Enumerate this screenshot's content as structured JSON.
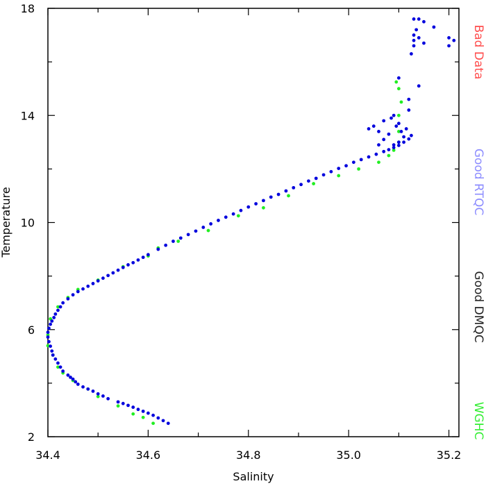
{
  "colors": {
    "bad_data": "#ff4d4d",
    "good_rtqc": "#8c8cff",
    "good_dmqc": "#222222",
    "wghc": "#33ee33",
    "argo_points": "#0000dd",
    "wghc_points": "#22ee22"
  },
  "legend": [
    {
      "label": "Bad Data",
      "color": "#ff4d4d"
    },
    {
      "label": "Good RTQC",
      "color": "#8c8cff"
    },
    {
      "label": "Good DMQC",
      "color": "#222222"
    },
    {
      "label": "WGHC",
      "color": "#33ee33"
    }
  ],
  "chart_data": {
    "type": "scatter",
    "title": "",
    "xlabel": "Salinity",
    "ylabel": "Temperature",
    "xlim": [
      34.4,
      35.22
    ],
    "ylim": [
      2,
      18
    ],
    "x_ticks": [
      34.4,
      34.6,
      34.8,
      35.0,
      35.2
    ],
    "x_tick_labels": [
      "34.4",
      "34.6",
      "34.8",
      "35.0",
      "35.2"
    ],
    "y_ticks": [
      2,
      6,
      10,
      14,
      18
    ],
    "y_tick_labels": [
      "2",
      "6",
      "10",
      "14",
      "18"
    ],
    "grid": false,
    "legend_position": "right",
    "series": [
      {
        "name": "Good DMQC",
        "color": "#0000dd",
        "points": [
          [
            34.64,
            2.5
          ],
          [
            34.63,
            2.6
          ],
          [
            34.62,
            2.7
          ],
          [
            34.61,
            2.8
          ],
          [
            34.6,
            2.88
          ],
          [
            34.59,
            2.95
          ],
          [
            34.58,
            3.02
          ],
          [
            34.57,
            3.1
          ],
          [
            34.56,
            3.17
          ],
          [
            34.55,
            3.24
          ],
          [
            34.54,
            3.3
          ],
          [
            34.52,
            3.42
          ],
          [
            34.51,
            3.52
          ],
          [
            34.5,
            3.6
          ],
          [
            34.49,
            3.7
          ],
          [
            34.48,
            3.78
          ],
          [
            34.47,
            3.86
          ],
          [
            34.46,
            3.96
          ],
          [
            34.455,
            4.05
          ],
          [
            34.45,
            4.15
          ],
          [
            34.445,
            4.22
          ],
          [
            34.44,
            4.3
          ],
          [
            34.43,
            4.45
          ],
          [
            34.425,
            4.6
          ],
          [
            34.42,
            4.75
          ],
          [
            34.415,
            4.9
          ],
          [
            34.41,
            5.05
          ],
          [
            34.408,
            5.2
          ],
          [
            34.405,
            5.38
          ],
          [
            34.402,
            5.55
          ],
          [
            34.4,
            5.72
          ],
          [
            34.4,
            5.9
          ],
          [
            34.402,
            6.05
          ],
          [
            34.405,
            6.2
          ],
          [
            34.408,
            6.32
          ],
          [
            34.412,
            6.45
          ],
          [
            34.415,
            6.58
          ],
          [
            34.42,
            6.72
          ],
          [
            34.425,
            6.85
          ],
          [
            34.43,
            7.0
          ],
          [
            34.44,
            7.15
          ],
          [
            34.45,
            7.3
          ],
          [
            34.46,
            7.42
          ],
          [
            34.47,
            7.52
          ],
          [
            34.48,
            7.62
          ],
          [
            34.49,
            7.72
          ],
          [
            34.5,
            7.82
          ],
          [
            34.51,
            7.92
          ],
          [
            34.52,
            8.02
          ],
          [
            34.53,
            8.12
          ],
          [
            34.54,
            8.22
          ],
          [
            34.55,
            8.32
          ],
          [
            34.56,
            8.42
          ],
          [
            34.57,
            8.5
          ],
          [
            34.58,
            8.6
          ],
          [
            34.59,
            8.7
          ],
          [
            34.6,
            8.8
          ],
          [
            34.62,
            9.0
          ],
          [
            34.635,
            9.15
          ],
          [
            34.65,
            9.3
          ],
          [
            34.665,
            9.42
          ],
          [
            34.68,
            9.55
          ],
          [
            34.695,
            9.68
          ],
          [
            34.71,
            9.82
          ],
          [
            34.725,
            9.95
          ],
          [
            34.74,
            10.08
          ],
          [
            34.755,
            10.2
          ],
          [
            34.77,
            10.32
          ],
          [
            34.785,
            10.45
          ],
          [
            34.8,
            10.58
          ],
          [
            34.815,
            10.7
          ],
          [
            34.83,
            10.82
          ],
          [
            34.845,
            10.95
          ],
          [
            34.86,
            11.05
          ],
          [
            34.875,
            11.18
          ],
          [
            34.89,
            11.3
          ],
          [
            34.905,
            11.42
          ],
          [
            34.92,
            11.55
          ],
          [
            34.935,
            11.65
          ],
          [
            34.95,
            11.78
          ],
          [
            34.965,
            11.9
          ],
          [
            34.98,
            12.02
          ],
          [
            34.995,
            12.12
          ],
          [
            35.01,
            12.25
          ],
          [
            35.025,
            12.35
          ],
          [
            35.04,
            12.45
          ],
          [
            35.055,
            12.55
          ],
          [
            35.07,
            12.65
          ],
          [
            35.08,
            12.72
          ],
          [
            35.09,
            12.8
          ],
          [
            35.1,
            12.88
          ],
          [
            35.11,
            13.0
          ],
          [
            35.12,
            13.12
          ],
          [
            35.125,
            13.25
          ],
          [
            35.04,
            13.5
          ],
          [
            35.05,
            13.6
          ],
          [
            35.06,
            13.4
          ],
          [
            35.07,
            13.8
          ],
          [
            35.08,
            13.3
          ],
          [
            35.085,
            13.9
          ],
          [
            35.09,
            14.0
          ],
          [
            35.095,
            13.6
          ],
          [
            35.1,
            13.7
          ],
          [
            35.105,
            13.4
          ],
          [
            35.11,
            13.2
          ],
          [
            35.06,
            12.9
          ],
          [
            35.07,
            13.1
          ],
          [
            35.09,
            12.9
          ],
          [
            35.1,
            13.0
          ],
          [
            35.115,
            13.5
          ],
          [
            35.12,
            14.2
          ],
          [
            35.12,
            14.6
          ],
          [
            35.1,
            15.4
          ],
          [
            35.14,
            15.1
          ],
          [
            35.13,
            17.6
          ],
          [
            35.14,
            17.6
          ],
          [
            35.15,
            17.5
          ],
          [
            35.13,
            17.0
          ],
          [
            35.14,
            16.9
          ],
          [
            35.15,
            16.7
          ],
          [
            35.13,
            16.6
          ],
          [
            35.125,
            16.3
          ],
          [
            35.17,
            17.3
          ],
          [
            35.2,
            16.9
          ],
          [
            35.21,
            16.8
          ],
          [
            35.2,
            16.6
          ],
          [
            35.13,
            16.8
          ],
          [
            35.135,
            17.2
          ]
        ]
      },
      {
        "name": "WGHC",
        "color": "#22ee22",
        "points": [
          [
            34.61,
            2.5
          ],
          [
            34.59,
            2.72
          ],
          [
            34.57,
            2.85
          ],
          [
            34.54,
            3.15
          ],
          [
            34.5,
            3.5
          ],
          [
            34.48,
            3.78
          ],
          [
            34.45,
            4.1
          ],
          [
            34.43,
            4.38
          ],
          [
            34.42,
            4.6
          ],
          [
            34.41,
            5.05
          ],
          [
            34.4,
            5.4
          ],
          [
            34.4,
            5.8
          ],
          [
            34.405,
            6.4
          ],
          [
            34.42,
            6.85
          ],
          [
            34.44,
            7.2
          ],
          [
            34.46,
            7.5
          ],
          [
            34.5,
            7.85
          ],
          [
            34.55,
            8.35
          ],
          [
            34.6,
            8.75
          ],
          [
            34.62,
            9.05
          ],
          [
            34.66,
            9.3
          ],
          [
            34.72,
            9.7
          ],
          [
            34.78,
            10.25
          ],
          [
            34.83,
            10.55
          ],
          [
            34.88,
            11.0
          ],
          [
            34.93,
            11.45
          ],
          [
            34.98,
            11.75
          ],
          [
            35.02,
            12.0
          ],
          [
            35.06,
            12.25
          ],
          [
            35.08,
            12.5
          ],
          [
            35.09,
            12.7
          ],
          [
            35.1,
            13.0
          ],
          [
            35.1,
            13.4
          ],
          [
            35.1,
            14.0
          ],
          [
            35.105,
            14.5
          ],
          [
            35.1,
            15.0
          ],
          [
            35.095,
            15.25
          ]
        ]
      }
    ]
  }
}
